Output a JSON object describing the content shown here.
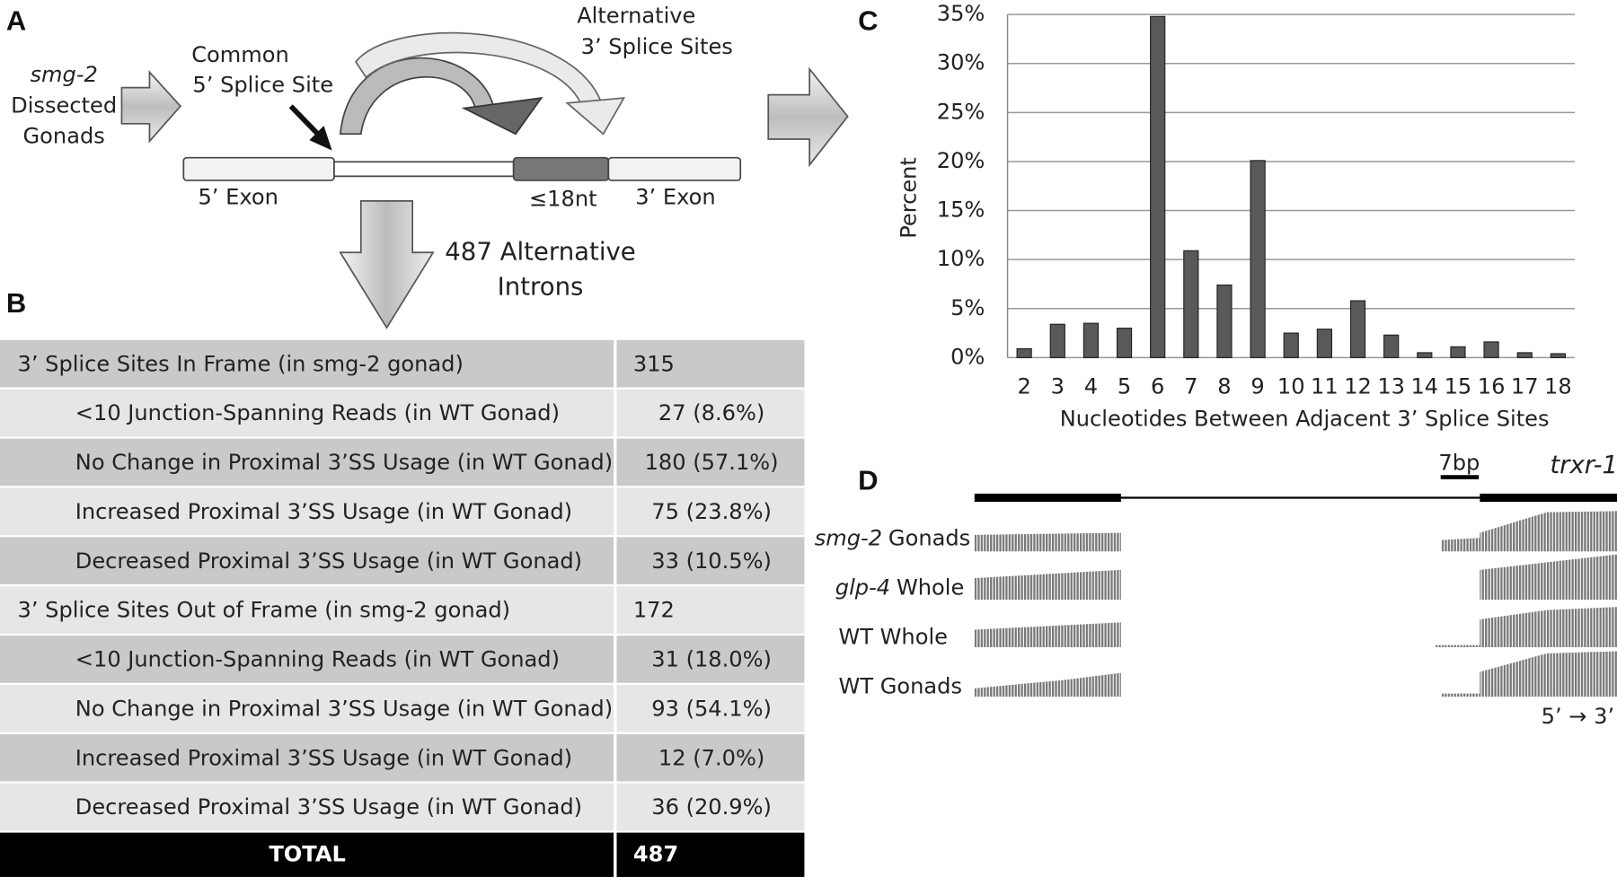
{
  "panel_a": {
    "letter": "A",
    "input_italic": "smg-2",
    "input_lines": [
      "Dissected",
      "Gonads"
    ],
    "common_site": [
      "Common",
      "5’ Splice Site"
    ],
    "alt_sites": [
      "Alternative",
      "3’ Splice Sites"
    ],
    "exon5": "5’ Exon",
    "spacer": "≤18nt",
    "exon3": "3’ Exon",
    "result": [
      "487 Alternative",
      "Introns"
    ]
  },
  "table": {
    "letter": "B",
    "rows": [
      [
        "3’ Splice Sites In Frame (in smg-2 gonad)",
        "315"
      ],
      [
        "<10 Junction-Spanning Reads (in WT Gonad)",
        "27 (8.6%)"
      ],
      [
        "No Change in Proximal 3’SS Usage (in WT Gonad)",
        "180 (57.1%)"
      ],
      [
        "Increased Proximal 3’SS Usage (in WT Gonad)",
        "75 (23.8%)"
      ],
      [
        "Decreased Proximal 3’SS Usage (in WT Gonad)",
        "33 (10.5%)"
      ],
      [
        "3’ Splice Sites Out of Frame (in smg-2 gonad)",
        "172"
      ],
      [
        "<10 Junction-Spanning Reads (in WT Gonad)",
        "31 (18.0%)"
      ],
      [
        "No Change in Proximal 3’SS Usage (in WT Gonad)",
        "93 (54.1%)"
      ],
      [
        "Increased Proximal 3’SS Usage (in WT Gonad)",
        "12 (7.0%)"
      ],
      [
        "Decreased Proximal 3’SS Usage (in WT Gonad)",
        "36 (20.9%)"
      ]
    ],
    "total": [
      "TOTAL",
      "487"
    ]
  },
  "chart_data": {
    "type": "bar",
    "letter": "C",
    "ylabel": "Percent",
    "xlabel": "Nucleotides Between Adjacent 3’ Splice Sites",
    "color": "#595959",
    "grid": true,
    "categories": [
      "2",
      "3",
      "4",
      "5",
      "6",
      "7",
      "8",
      "9",
      "10",
      "11",
      "12",
      "13",
      "14",
      "15",
      "16",
      "17",
      "18"
    ],
    "values": [
      0.9,
      3.4,
      3.5,
      3.0,
      34.8,
      10.9,
      7.4,
      20.1,
      2.5,
      2.9,
      5.8,
      2.3,
      0.5,
      1.1,
      1.6,
      0.5,
      0.4
    ],
    "ylim": [
      0,
      35
    ],
    "yticks": [
      {
        "value": 0,
        "label": "0%"
      },
      {
        "value": 5,
        "label": "5%"
      },
      {
        "value": 10,
        "label": "10%"
      },
      {
        "value": 15,
        "label": "15%"
      },
      {
        "value": 20,
        "label": "20%"
      },
      {
        "value": 25,
        "label": "25%"
      },
      {
        "value": 30,
        "label": "30%"
      },
      {
        "value": 35,
        "label": "35%"
      }
    ]
  },
  "panel_d": {
    "letter": "D",
    "scale": "7bp",
    "gene": "trxr-1",
    "tracks": [
      {
        "italic": "smg-2",
        "rest": "Gonads"
      },
      {
        "italic": "glp-4",
        "rest": "Whole"
      },
      {
        "italic": null,
        "rest": "WT Whole"
      },
      {
        "italic": null,
        "rest": "WT Gonads"
      }
    ],
    "direction": "5’ → 3’"
  }
}
